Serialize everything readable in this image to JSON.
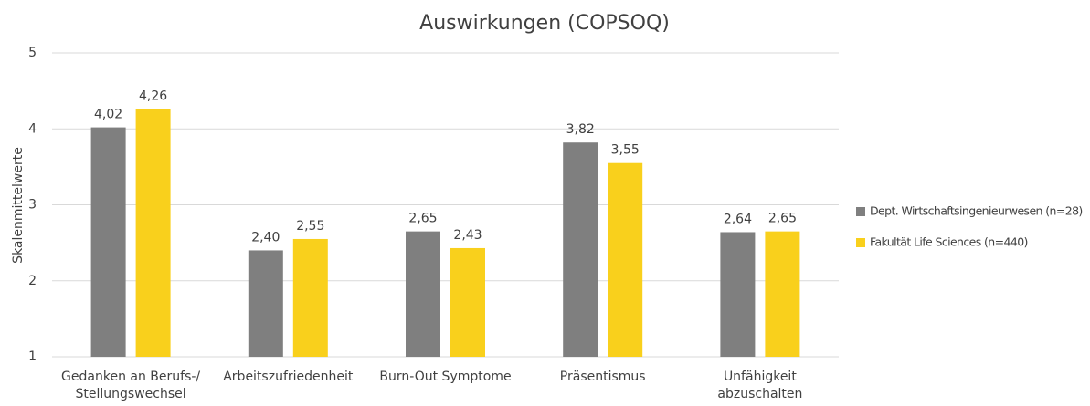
{
  "chart_data": {
    "type": "bar",
    "title": "Auswirkungen (COPSOQ)",
    "y_label": "Skalenmittelwerte",
    "categories": [
      "Gedanken an Berufs-/\nStellungswechsel",
      "Arbeitszufriedenheit",
      "Burn-Out Symptome",
      "Präsentismus",
      "Unfähigkeit\nabzuschalten"
    ],
    "series": [
      {
        "name": "Dept. Wirtschaftsingenieurwesen (n=28)",
        "color": "#7f7f7f",
        "values": [
          4.02,
          2.4,
          2.65,
          3.82,
          2.64
        ],
        "value_labels": [
          "4,02",
          "2,40",
          "2,65",
          "3,82",
          "2,64"
        ]
      },
      {
        "name": "Fakultät Life Sciences (n=440)",
        "color": "#f9d01c",
        "values": [
          4.26,
          2.55,
          2.43,
          3.55,
          2.65
        ],
        "value_labels": [
          "4,26",
          "2,55",
          "2,43",
          "3,55",
          "2,65"
        ]
      }
    ],
    "ylim": [
      1,
      5
    ],
    "yticks": [
      1,
      2,
      3,
      4,
      5
    ],
    "grid": true,
    "legend": "right"
  }
}
